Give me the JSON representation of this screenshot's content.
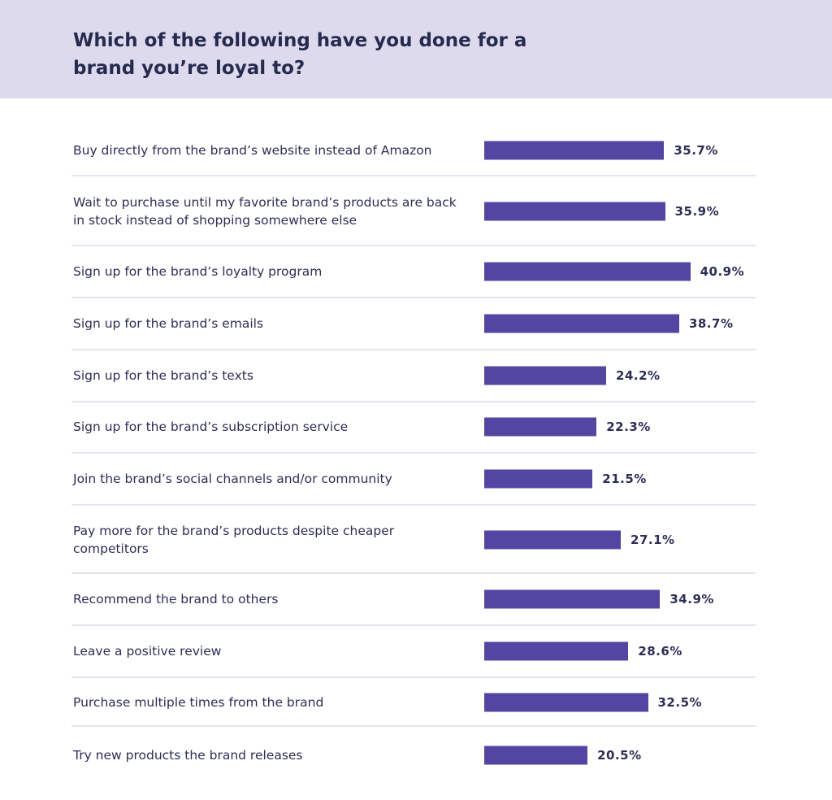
{
  "header": {
    "title": "Which of the following have you done for a brand you’re loyal to?"
  },
  "chart_data": {
    "type": "bar",
    "orientation": "horizontal",
    "title": "Which of the following have you done for a brand you’re loyal to?",
    "xlabel": "",
    "ylabel": "",
    "unit": "%",
    "grid": false,
    "legend": "none",
    "bar_color": "#5246a2",
    "categories": [
      "Buy directly from the brand’s website instead of Amazon",
      "Wait to purchase until my favorite brand’s products are back in stock instead of shopping somewhere else",
      "Sign up for the brand’s loyalty program",
      "Sign up for the brand’s emails",
      "Sign up for the brand’s texts",
      "Sign up for the brand’s subscription service",
      "Join the brand’s social channels and/or community",
      "Pay more for the brand’s products despite cheaper competitors",
      "Recommend the brand to others",
      "Leave a positive review",
      "Purchase multiple times from the brand",
      "Try new products the brand releases"
    ],
    "values": [
      35.7,
      35.9,
      40.9,
      38.7,
      24.2,
      22.3,
      21.5,
      27.1,
      34.9,
      28.6,
      32.5,
      20.5
    ],
    "value_labels": [
      "35.7%",
      "35.9%",
      "40.9%",
      "38.7%",
      "24.2%",
      "22.3%",
      "21.5%",
      "27.1%",
      "34.9%",
      "28.6%",
      "32.5%",
      "20.5%"
    ]
  }
}
